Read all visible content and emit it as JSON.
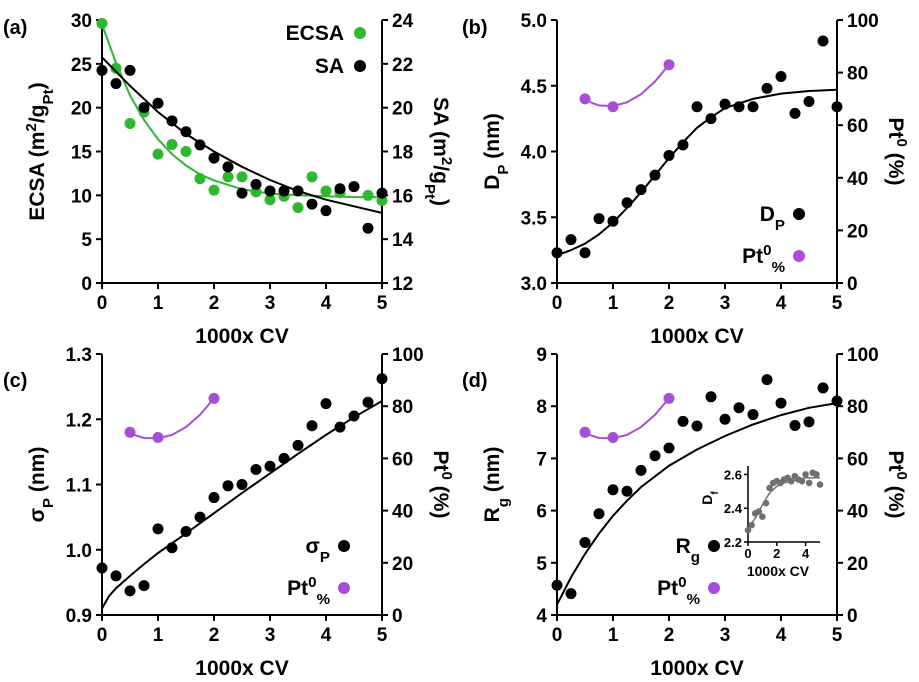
{
  "chart_data": [
    {
      "panel": "(a)",
      "type": "scatter",
      "xlabel": "1000x CV",
      "ylabel": "ECSA (m²/gPt)",
      "ylabel_parts": [
        "ECSA (m",
        "2",
        "/g",
        "Pt",
        ")"
      ],
      "y2label": "SA (m²/gPt)",
      "y2label_parts": [
        "SA (m",
        "2",
        "/g",
        "Pt",
        ")"
      ],
      "xlim": [
        0,
        5
      ],
      "ylim": [
        0,
        30
      ],
      "y2lim": [
        12,
        24
      ],
      "xticks": [
        0,
        1,
        2,
        3,
        4,
        5
      ],
      "yticks": [
        0,
        5,
        10,
        15,
        20,
        25,
        30
      ],
      "y2ticks": [
        12,
        14,
        16,
        18,
        20,
        22,
        24
      ],
      "legend_position": "top-right",
      "series": [
        {
          "name": "ECSA",
          "axis": "left",
          "color": "#2db82d",
          "x": [
            0,
            0.25,
            0.5,
            0.75,
            1.0,
            1.25,
            1.5,
            1.75,
            2.0,
            2.25,
            2.5,
            2.75,
            3.0,
            3.25,
            3.5,
            3.75,
            4.0,
            4.25,
            4.5,
            4.75,
            5.0
          ],
          "y": [
            29.6,
            24.5,
            18.2,
            19.5,
            14.7,
            15.8,
            15.0,
            11.9,
            10.6,
            12.1,
            12.1,
            10.4,
            9.5,
            9.9,
            8.6,
            12.1,
            10.5,
            10.3,
            11.0,
            10.0,
            9.4
          ],
          "fit": {
            "x": [
              0,
              0.25,
              0.5,
              0.75,
              1.0,
              1.25,
              1.5,
              1.75,
              2.0,
              2.5,
              3.0,
              3.5,
              4.0,
              4.5,
              5.0
            ],
            "y": [
              29.5,
              25.1,
              21.4,
              18.6,
              16.4,
              14.7,
              13.4,
              12.4,
              11.7,
              10.7,
              10.2,
              10.0,
              9.9,
              9.8,
              9.8
            ]
          }
        },
        {
          "name": "SA",
          "axis": "right",
          "color": "#000000",
          "x": [
            0,
            0.25,
            0.5,
            0.75,
            1.0,
            1.25,
            1.5,
            1.75,
            2.0,
            2.25,
            2.5,
            2.75,
            3.0,
            3.25,
            3.5,
            3.75,
            4.0,
            4.25,
            4.5,
            4.75,
            5.0
          ],
          "y": [
            21.7,
            21.1,
            21.7,
            20.0,
            20.2,
            19.4,
            18.9,
            18.3,
            17.7,
            17.3,
            16.1,
            16.5,
            16.2,
            16.2,
            16.2,
            15.6,
            15.3,
            16.3,
            16.4,
            14.5,
            16.1
          ],
          "fit": {
            "x": [
              0,
              0.5,
              1.0,
              1.5,
              2.0,
              2.5,
              3.0,
              3.5,
              4.0,
              4.5,
              5.0
            ],
            "y": [
              22.3,
              21.0,
              19.8,
              18.8,
              18.0,
              17.3,
              16.7,
              16.2,
              15.8,
              15.5,
              15.2
            ]
          }
        }
      ]
    },
    {
      "panel": "(b)",
      "type": "scatter",
      "xlabel": "1000x CV",
      "ylabel": "DP (nm)",
      "ylabel_parts": [
        "D",
        "P",
        " (nm)"
      ],
      "y2label": "Pt0 (%)",
      "y2label_parts": [
        "Pt",
        "0",
        " (%)"
      ],
      "xlim": [
        0,
        5
      ],
      "ylim": [
        3.0,
        5.0
      ],
      "y2lim": [
        0,
        100
      ],
      "xticks": [
        0,
        1,
        2,
        3,
        4,
        5
      ],
      "yticks": [
        3.0,
        3.5,
        4.0,
        4.5,
        5.0
      ],
      "y2ticks": [
        0,
        20,
        40,
        60,
        80,
        100
      ],
      "legend_position": "bottom-right",
      "series": [
        {
          "name": "DP",
          "name_parts": [
            "D",
            "P",
            ""
          ],
          "axis": "left",
          "color": "#000000",
          "x": [
            0,
            0.25,
            0.5,
            0.75,
            1.0,
            1.25,
            1.5,
            1.75,
            2.0,
            2.25,
            2.5,
            2.75,
            3.0,
            3.25,
            3.5,
            3.75,
            4.0,
            4.25,
            4.5,
            4.75,
            5.0
          ],
          "y": [
            3.23,
            3.33,
            3.23,
            3.49,
            3.47,
            3.61,
            3.71,
            3.82,
            3.97,
            4.05,
            4.34,
            4.25,
            4.36,
            4.34,
            4.34,
            4.48,
            4.57,
            4.29,
            4.38,
            4.84,
            4.34
          ],
          "fit": {
            "x": [
              0,
              0.25,
              0.5,
              0.75,
              1.0,
              1.25,
              1.5,
              1.75,
              2.0,
              2.25,
              2.5,
              2.75,
              3.0,
              3.5,
              4.0,
              4.5,
              5.0
            ],
            "y": [
              3.21,
              3.25,
              3.3,
              3.37,
              3.46,
              3.57,
              3.69,
              3.82,
              3.95,
              4.07,
              4.18,
              4.26,
              4.33,
              4.4,
              4.44,
              4.46,
              4.47
            ]
          }
        },
        {
          "name": "Pt0%",
          "name_parts": [
            "Pt",
            "0",
            "%"
          ],
          "axis": "right",
          "color": "#a64fd6",
          "x": [
            0.5,
            1.0,
            2.0
          ],
          "y": [
            70,
            67,
            83
          ],
          "fit": {
            "x": [
              0.5,
              0.75,
              1.0,
              1.25,
              1.5,
              1.75,
              2.0
            ],
            "y": [
              69.5,
              67.5,
              67.3,
              68.7,
              71.8,
              76.6,
              83.0
            ]
          }
        }
      ]
    },
    {
      "panel": "(c)",
      "type": "scatter",
      "xlabel": "1000x CV",
      "ylabel": "σP (nm)",
      "ylabel_parts": [
        "σ",
        "P",
        " (nm)"
      ],
      "y2label": "Pt0 (%)",
      "y2label_parts": [
        "Pt",
        "0",
        " (%)"
      ],
      "xlim": [
        0,
        5
      ],
      "ylim": [
        0.9,
        1.3
      ],
      "y2lim": [
        0,
        100
      ],
      "xticks": [
        0,
        1,
        2,
        3,
        4,
        5
      ],
      "yticks": [
        0.9,
        1.0,
        1.1,
        1.2,
        1.3
      ],
      "y2ticks": [
        0,
        20,
        40,
        60,
        80,
        100
      ],
      "legend_position": "bottom-right",
      "series": [
        {
          "name": "σP",
          "name_parts": [
            "σ",
            "P",
            ""
          ],
          "axis": "left",
          "color": "#000000",
          "x": [
            0,
            0.25,
            0.5,
            0.75,
            1.0,
            1.25,
            1.5,
            1.75,
            2.0,
            2.25,
            2.5,
            2.75,
            3.0,
            3.25,
            3.5,
            3.75,
            4.0,
            4.25,
            4.5,
            4.75,
            5.0
          ],
          "y": [
            0.972,
            0.96,
            0.937,
            0.945,
            1.032,
            1.003,
            1.028,
            1.05,
            1.08,
            1.098,
            1.1,
            1.123,
            1.128,
            1.14,
            1.16,
            1.19,
            1.224,
            1.188,
            1.205,
            1.226,
            1.262
          ],
          "fit": {
            "x": [
              0,
              0.125,
              0.25,
              0.5,
              0.75,
              1.0,
              1.5,
              2.0,
              2.5,
              3.0,
              3.5,
              4.0,
              4.5,
              5.0
            ],
            "y": [
              0.91,
              0.929,
              0.941,
              0.96,
              0.978,
              0.995,
              1.025,
              1.056,
              1.087,
              1.117,
              1.147,
              1.176,
              1.203,
              1.228
            ]
          }
        },
        {
          "name": "Pt0%",
          "name_parts": [
            "Pt",
            "0",
            "%"
          ],
          "axis": "right",
          "color": "#a64fd6",
          "x": [
            0.5,
            1.0,
            2.0
          ],
          "y": [
            70,
            68,
            83
          ],
          "fit": {
            "x": [
              0.5,
              0.75,
              1.0,
              1.25,
              1.5,
              1.75,
              2.0
            ],
            "y": [
              69.5,
              67.8,
              67.7,
              69.0,
              72.0,
              76.7,
              83.0
            ]
          }
        }
      ]
    },
    {
      "panel": "(d)",
      "type": "scatter",
      "xlabel": "1000x CV",
      "ylabel": "Rg (nm)",
      "ylabel_parts": [
        "R",
        "g",
        " (nm)"
      ],
      "y2label": "Pt0 (%)",
      "y2label_parts": [
        "Pt",
        "0",
        " (%)"
      ],
      "xlim": [
        0,
        5
      ],
      "ylim": [
        4,
        9
      ],
      "y2lim": [
        0,
        100
      ],
      "xticks": [
        0,
        1,
        2,
        3,
        4,
        5
      ],
      "yticks": [
        4,
        5,
        6,
        7,
        8,
        9
      ],
      "y2ticks": [
        0,
        20,
        40,
        60,
        80,
        100
      ],
      "legend_position": "bottom-center",
      "series": [
        {
          "name": "Rg",
          "name_parts": [
            "R",
            "g",
            ""
          ],
          "axis": "left",
          "color": "#000000",
          "x": [
            0,
            0.25,
            0.5,
            0.75,
            1.0,
            1.25,
            1.5,
            1.75,
            2.0,
            2.25,
            2.5,
            2.75,
            3.0,
            3.25,
            3.5,
            3.75,
            4.0,
            4.25,
            4.5,
            4.75,
            5.0
          ],
          "y": [
            4.57,
            4.41,
            5.39,
            5.94,
            6.4,
            6.37,
            6.77,
            7.05,
            7.2,
            7.71,
            7.62,
            8.18,
            7.75,
            7.97,
            7.84,
            8.51,
            8.06,
            7.63,
            7.7,
            8.35,
            8.1
          ],
          "fit": {
            "x": [
              0,
              0.25,
              0.5,
              0.75,
              1.0,
              1.25,
              1.5,
              2.0,
              2.5,
              3.0,
              3.5,
              4.0,
              4.5,
              5.0
            ],
            "y": [
              4.2,
              4.72,
              5.17,
              5.56,
              5.9,
              6.19,
              6.45,
              6.86,
              7.17,
              7.43,
              7.65,
              7.83,
              7.97,
              8.06
            ]
          }
        },
        {
          "name": "Pt0%",
          "name_parts": [
            "Pt",
            "0",
            "%"
          ],
          "axis": "right",
          "color": "#a64fd6",
          "x": [
            0.5,
            1.0,
            2.0
          ],
          "y": [
            70,
            68,
            83
          ],
          "fit": {
            "x": [
              0.5,
              0.75,
              1.0,
              1.25,
              1.5,
              1.75,
              2.0
            ],
            "y": [
              69.5,
              67.8,
              67.7,
              69.0,
              72.0,
              76.7,
              83.0
            ]
          }
        }
      ],
      "inset": {
        "type": "scatter",
        "xlabel": "1000x CV",
        "ylabel": "Df",
        "ylabel_parts": [
          "D",
          "f"
        ],
        "xlim": [
          0,
          5
        ],
        "ylim": [
          2.2,
          2.65
        ],
        "xticks": [
          0,
          2,
          4
        ],
        "yticks": [
          2.2,
          2.4,
          2.6
        ],
        "color": "#707070",
        "x": [
          0,
          0.25,
          0.5,
          0.75,
          1.0,
          1.25,
          1.5,
          1.75,
          2.0,
          2.25,
          2.5,
          2.75,
          3.0,
          3.25,
          3.5,
          3.75,
          4.0,
          4.25,
          4.5,
          4.75,
          5.0
        ],
        "y": [
          2.27,
          2.3,
          2.37,
          2.38,
          2.35,
          2.43,
          2.52,
          2.55,
          2.56,
          2.55,
          2.57,
          2.58,
          2.56,
          2.59,
          2.57,
          2.56,
          2.6,
          2.55,
          2.61,
          2.6,
          2.54
        ],
        "fit": {
          "x": [
            0,
            0.5,
            1.0,
            1.5,
            2.0,
            2.5,
            3.0,
            3.5,
            4.0,
            4.5,
            5.0
          ],
          "y": [
            2.28,
            2.34,
            2.42,
            2.49,
            2.53,
            2.55,
            2.56,
            2.57,
            2.58,
            2.58,
            2.58
          ]
        }
      }
    }
  ]
}
